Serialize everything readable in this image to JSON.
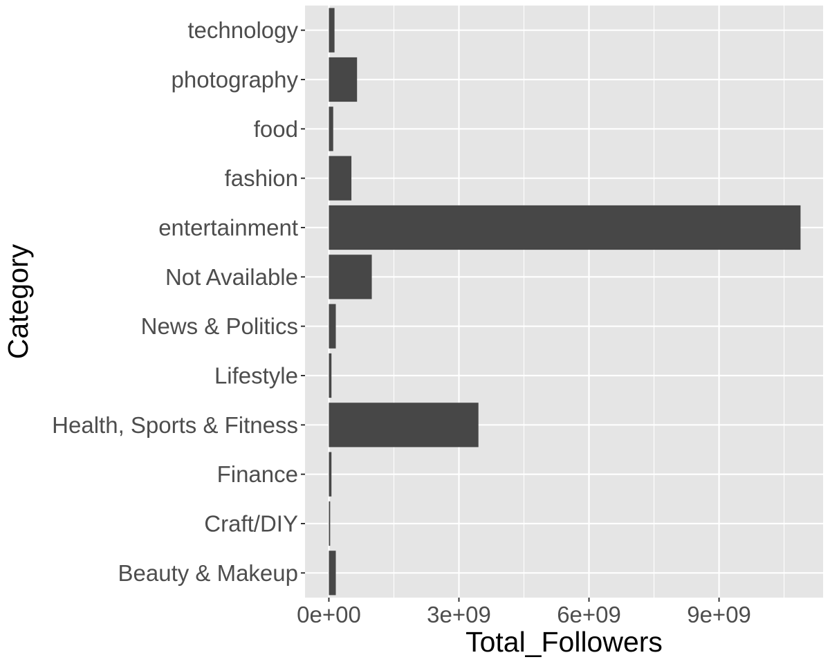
{
  "chart_data": {
    "type": "bar",
    "orientation": "horizontal",
    "categories": [
      "Beauty & Makeup",
      "Craft/DIY",
      "Finance",
      "Health, Sports & Fitness",
      "Lifestyle",
      "News & Politics",
      "Not Available",
      "entertainment",
      "fashion",
      "food",
      "photography",
      "technology"
    ],
    "values": [
      160000000,
      30000000,
      60000000,
      3450000000,
      60000000,
      160000000,
      990000000,
      10880000000,
      520000000,
      100000000,
      650000000,
      130000000
    ],
    "xlim": [
      -550000000,
      11400000000
    ],
    "x_ticks": [
      0,
      3000000000,
      6000000000,
      9000000000
    ],
    "x_tick_labels": [
      "0e+00",
      "3e+09",
      "6e+09",
      "9e+09"
    ],
    "xlabel": "Total_Followers",
    "ylabel": "Category",
    "grid": true,
    "colors": {
      "bar": "#474747",
      "panel": "#E5E5E5",
      "grid_major": "#FFFFFF",
      "tick_text": "#4D4D4D",
      "axis_title": "#000000"
    }
  }
}
